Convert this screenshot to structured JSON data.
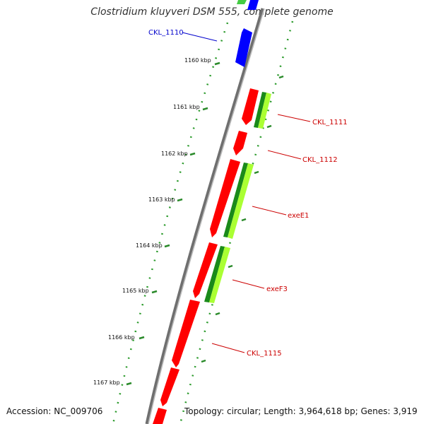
{
  "title": "Clostridium kluyveri DSM 555, complete genome",
  "accession": "Accession: NC_009706",
  "summary": "Topology: circular; Length: 3,964,618 bp; Genes: 3,919",
  "colors": {
    "backbone": "#7a7a7a",
    "gene_forward": "#ff0000",
    "gene_plus_strand": "#0000ff",
    "feature_dark_green": "#1a8a1a",
    "feature_light_green": "#aaff33",
    "tick_green": "#2a8a2a"
  },
  "ticks": [
    "1160 kbp",
    "1161 kbp",
    "1162 kbp",
    "1163 kbp",
    "1164 kbp",
    "1165 kbp",
    "1166 kbp",
    "1167 kbp"
  ],
  "gene_labels": [
    {
      "text": "CKL_1110",
      "color": "#0000cc"
    },
    {
      "text": "CKL_1111",
      "color": "#cc0000"
    },
    {
      "text": "CKL_1112",
      "color": "#cc0000"
    },
    {
      "text": "exeE1",
      "color": "#cc0000"
    },
    {
      "text": "exeF3",
      "color": "#cc0000"
    },
    {
      "text": "CKL_1115",
      "color": "#cc0000"
    }
  ]
}
